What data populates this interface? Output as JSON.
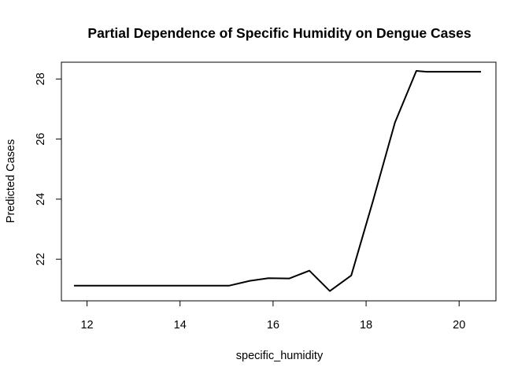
{
  "chart_data": {
    "type": "line",
    "title": "Partial Dependence of Specific Humidity on Dengue Cases",
    "xlabel": "specific_humidity",
    "ylabel": "Predicted Cases",
    "xlim": [
      11.72,
      20.47
    ],
    "ylim": [
      20.93,
      28.27
    ],
    "x_ticks": [
      "12",
      "14",
      "16",
      "18",
      "20"
    ],
    "y_ticks": [
      "22",
      "24",
      "26",
      "28"
    ],
    "grid": false,
    "line_color": "#000000",
    "series": [
      {
        "x": [
          11.72,
          12.5,
          13.5,
          14.5,
          15.05,
          15.5,
          15.9,
          16.35,
          16.78,
          17.22,
          17.68,
          18.15,
          18.62,
          19.08,
          19.3,
          20.47
        ],
        "y": [
          21.12,
          21.12,
          21.12,
          21.12,
          21.12,
          21.28,
          21.37,
          21.36,
          21.62,
          20.94,
          21.46,
          23.95,
          26.55,
          28.27,
          28.24,
          28.24
        ]
      }
    ]
  }
}
